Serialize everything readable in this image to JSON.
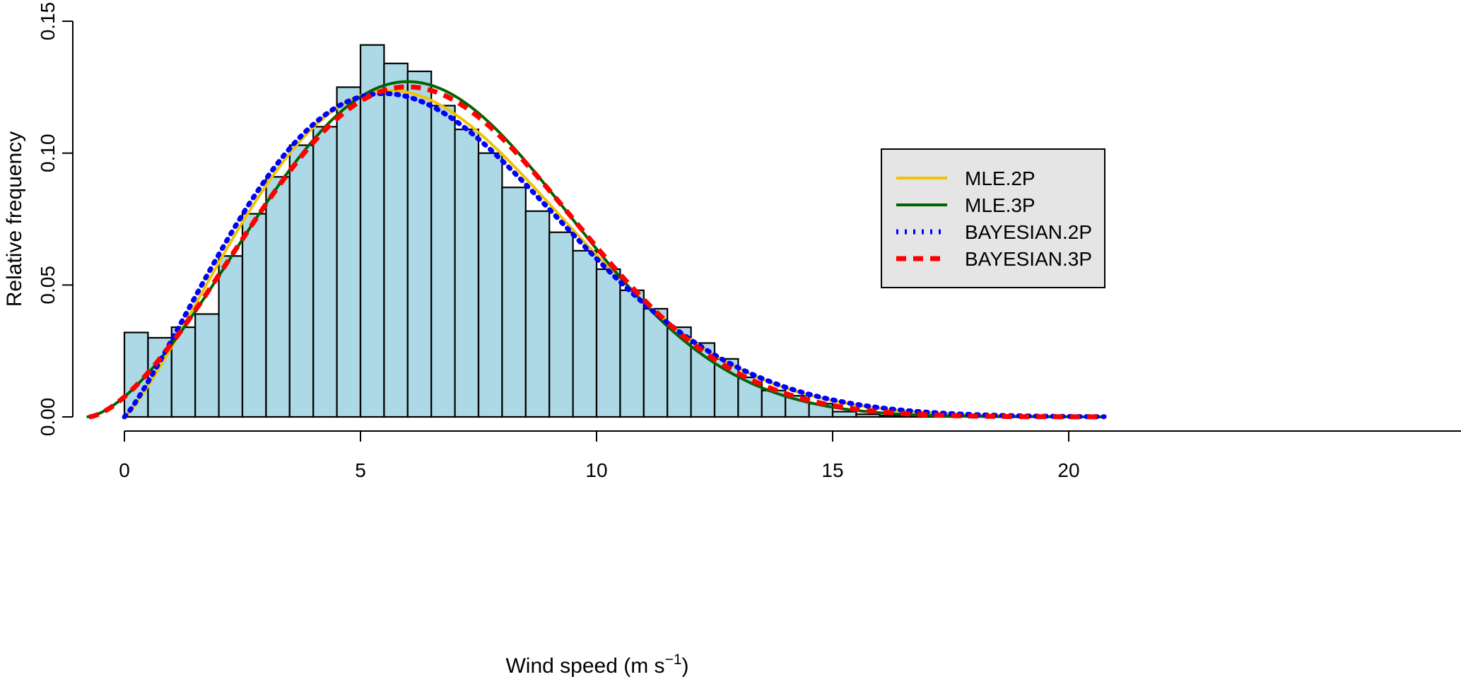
{
  "chart_data": {
    "type": "bar",
    "title": "",
    "xlabel": "Wind speed (m s",
    "xlabel_sup": "−1",
    "xlabel_close": ")",
    "ylabel": "Relative frequency",
    "xlim": [
      -1,
      20.8
    ],
    "ylim": [
      0,
      0.15
    ],
    "xticks": [
      "0",
      "5",
      "10",
      "15",
      "20"
    ],
    "xtick_values": [
      0,
      5,
      10,
      15,
      20
    ],
    "yticks": [
      "0.00",
      "0.05",
      "0.10",
      "0.15"
    ],
    "ytick_values": [
      0,
      0.05,
      0.1,
      0.15
    ],
    "bin_width": 0.5,
    "bin_start": 0,
    "histogram_values": [
      0.032,
      0.03,
      0.034,
      0.039,
      0.061,
      0.077,
      0.091,
      0.103,
      0.11,
      0.125,
      0.141,
      0.134,
      0.131,
      0.118,
      0.109,
      0.1,
      0.087,
      0.078,
      0.07,
      0.063,
      0.056,
      0.048,
      0.041,
      0.034,
      0.028,
      0.022,
      0.015,
      0.01,
      0.008,
      0.005,
      0.002,
      0.001,
      0.0005,
      0.0004,
      0.0003,
      0.0002,
      0.0002,
      0.0001,
      0.0001,
      0.0001,
      0.0001
    ],
    "bar_color": "#add8e6",
    "series": [
      {
        "name": "MLE.2P",
        "distribution": "weibull",
        "shape": 2.2,
        "scale": 7.4,
        "location": 0,
        "color": "#f0c400",
        "style": "solid"
      },
      {
        "name": "MLE.3P",
        "distribution": "weibull",
        "shape": 2.6,
        "scale": 8.2,
        "location": -0.8,
        "color": "#006400",
        "style": "solid"
      },
      {
        "name": "BAYESIAN.2P",
        "distribution": "weibull",
        "shape": 2.15,
        "scale": 7.35,
        "location": 0,
        "color": "#0000ff",
        "style": "dotted"
      },
      {
        "name": "BAYESIAN.3P",
        "distribution": "weibull",
        "shape": 2.55,
        "scale": 8.2,
        "location": -0.75,
        "color": "#ff0000",
        "style": "dashed"
      }
    ],
    "legend_placement": "right",
    "grid": false
  }
}
